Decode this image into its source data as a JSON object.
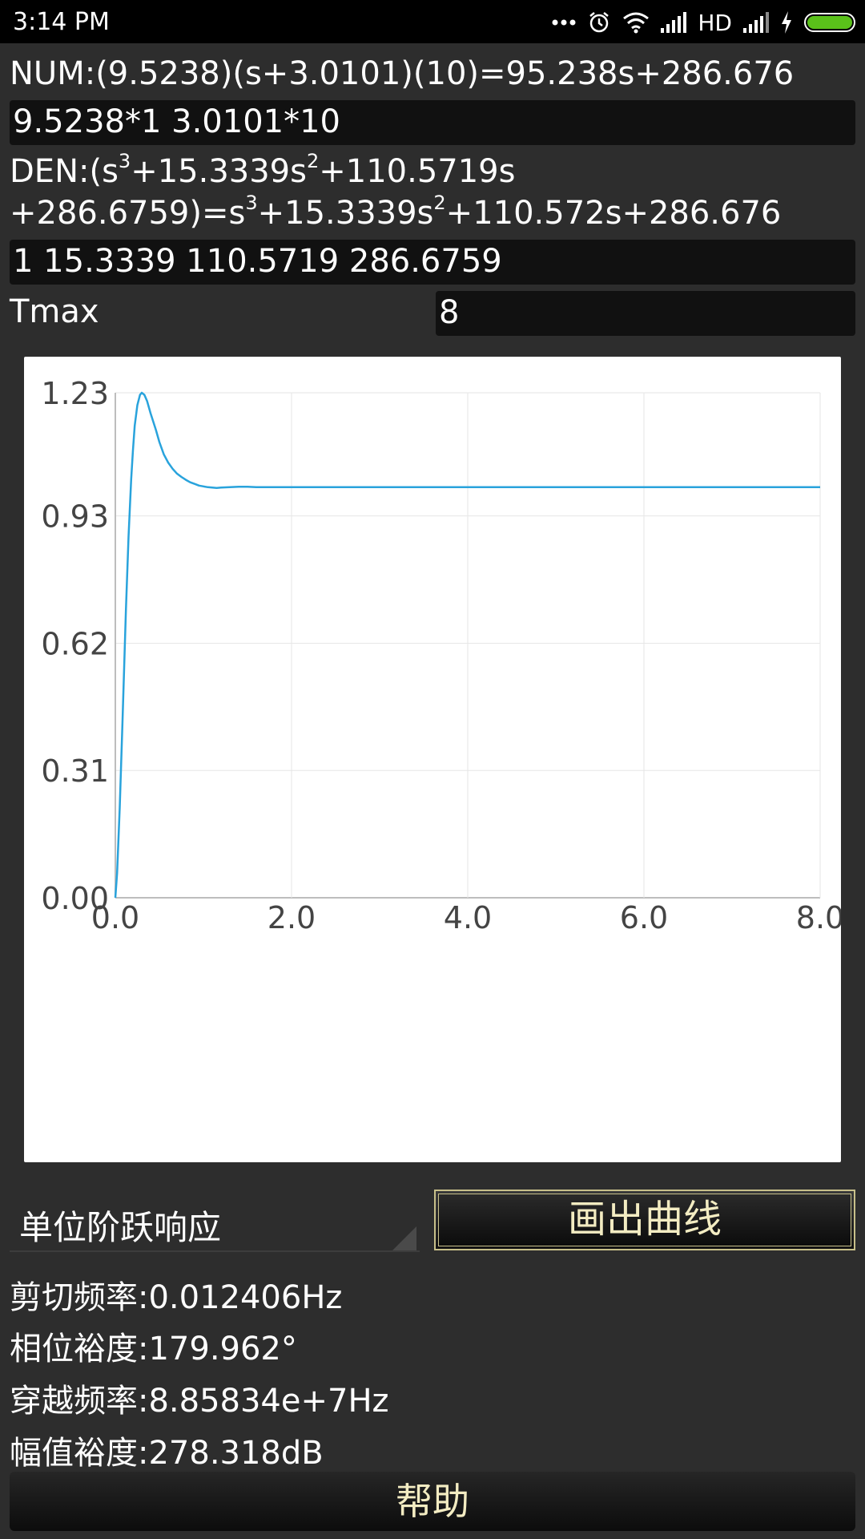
{
  "status_bar": {
    "time": "3:14 PM",
    "network": "HD",
    "battery_level": 1.0,
    "icons": [
      "more-dots-icon",
      "alarm-icon",
      "wifi-icon",
      "signal-icon",
      "signal-icon",
      "charging-icon",
      "battery-icon"
    ]
  },
  "num": {
    "label": "NUM:(9.5238)(s+3.0101)(10)=95.238s+286.676",
    "input_value": "9.5238*1 3.0101*10"
  },
  "den": {
    "line1_prefix": "DEN:(s",
    "line1_exp1": "3",
    "line1_mid": "+15.3339s",
    "line1_exp2": "2",
    "line1_suffix": "+110.5719s",
    "line2_prefix": "+286.6759)=s",
    "line2_exp1": "3",
    "line2_mid": "+15.3339s",
    "line2_exp2": "2",
    "line2_suffix": "+110.572s+286.676",
    "input_value": "1 15.3339 110.5719 286.6759"
  },
  "tmax": {
    "label": "Tmax",
    "value": "8"
  },
  "chart_data": {
    "type": "line",
    "title": "",
    "xlabel": "",
    "ylabel": "",
    "xlim": [
      0,
      8
    ],
    "ylim": [
      0,
      1.23
    ],
    "x_ticks": [
      "0.0",
      "2.0",
      "4.0",
      "6.0",
      "8.0"
    ],
    "y_ticks": [
      "0.00",
      "0.31",
      "0.62",
      "0.93",
      "1.23"
    ],
    "grid": true,
    "line_color": "#29a3dc",
    "series": [
      {
        "x": [
          0,
          0.02,
          0.05,
          0.08,
          0.1,
          0.12,
          0.15,
          0.18,
          0.2,
          0.22,
          0.25,
          0.28,
          0.3,
          0.33,
          0.36,
          0.4,
          0.43,
          0.46,
          0.5,
          0.55,
          0.6,
          0.65,
          0.7,
          0.75,
          0.8,
          0.85,
          0.9,
          0.95,
          1.0,
          1.05,
          1.1,
          1.15,
          1.2,
          1.3,
          1.4,
          1.5,
          1.6,
          1.8,
          2.0,
          2.5,
          3.0,
          4.0,
          5.0,
          6.0,
          7.0,
          8.0
        ],
        "y": [
          0,
          0.06,
          0.22,
          0.42,
          0.56,
          0.7,
          0.88,
          1.02,
          1.09,
          1.15,
          1.2,
          1.225,
          1.23,
          1.225,
          1.21,
          1.18,
          1.16,
          1.14,
          1.11,
          1.08,
          1.06,
          1.045,
          1.033,
          1.025,
          1.018,
          1.012,
          1.008,
          1.004,
          1.002,
          1.0,
          0.999,
          0.998,
          0.999,
          1.0,
          1.001,
          1.001,
          1.0,
          1.0,
          1.0,
          1.0,
          1.0,
          1.0,
          1.0,
          1.0,
          1.0,
          1.0
        ]
      }
    ]
  },
  "mode_select": {
    "value": "单位阶跃响应"
  },
  "draw_button": {
    "label": "画出曲线"
  },
  "results": {
    "cutoff_freq": "剪切频率:0.012406Hz",
    "phase_margin": "相位裕度:179.962°",
    "crossover_freq": "穿越频率:8.85834e+7Hz",
    "gain_margin": "幅值裕度:278.318dB"
  },
  "help_button": {
    "label": "帮助"
  }
}
